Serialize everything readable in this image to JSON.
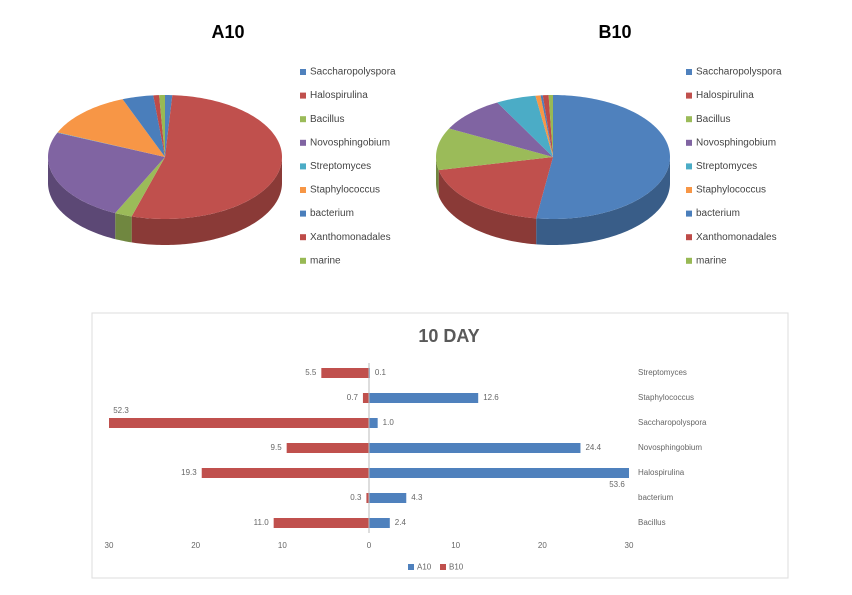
{
  "chart_data": [
    {
      "type": "pie",
      "title": "A10",
      "categories": [
        "Saccharopolyspora",
        "Halospirulina",
        "Bacillus",
        "Novosphingobium",
        "Streptomyces",
        "Staphylococcus",
        "bacterium",
        "Xanthomonadales",
        "marine"
      ],
      "values": [
        1.0,
        53.6,
        2.4,
        24.4,
        0.1,
        12.6,
        4.3,
        0.8,
        0.8
      ],
      "colors": [
        "#4f81bd",
        "#c0504d",
        "#9bbb59",
        "#8064a2",
        "#4bacc6",
        "#f79646",
        "#4a7ebb",
        "#be4b48",
        "#98b954"
      ],
      "legend": "right"
    },
    {
      "type": "pie",
      "title": "B10",
      "categories": [
        "Saccharopolyspora",
        "Halospirulina",
        "Bacillus",
        "Novosphingobium",
        "Streptomyces",
        "Staphylococcus",
        "bacterium",
        "Xanthomonadales",
        "marine"
      ],
      "values": [
        52.3,
        19.3,
        11.0,
        9.5,
        5.5,
        0.7,
        0.3,
        0.8,
        0.6
      ],
      "colors": [
        "#4f81bd",
        "#c0504d",
        "#9bbb59",
        "#8064a2",
        "#4bacc6",
        "#f79646",
        "#4a7ebb",
        "#be4b48",
        "#98b954"
      ],
      "legend": "right"
    },
    {
      "type": "bar",
      "title": "10 DAY",
      "categories": [
        "Streptomyces",
        "Staphylococcus",
        "Saccharopolyspora",
        "Novosphingobium",
        "Halospirulina",
        "bacterium",
        "Bacillus"
      ],
      "series": [
        {
          "name": "A10",
          "color": "#4f81bd",
          "side": "right",
          "values": [
            0.1,
            12.6,
            1.0,
            24.4,
            53.6,
            4.3,
            2.4
          ],
          "value_labels": [
            "0.1",
            "12.6",
            "1.0",
            "24.4",
            "53.6",
            "4.3",
            "2.4"
          ]
        },
        {
          "name": "B10",
          "color": "#c0504d",
          "side": "left",
          "values": [
            5.5,
            0.7,
            52.3,
            9.5,
            19.3,
            0.3,
            11.0
          ],
          "value_labels": [
            "5.5",
            "0.7",
            "52.3",
            "9.5",
            "19.3",
            "0.3",
            "11.0"
          ]
        }
      ],
      "xlim": [
        -30,
        30
      ],
      "xticks": [
        {
          "value": -30,
          "label": "30"
        },
        {
          "value": -20,
          "label": "20"
        },
        {
          "value": -10,
          "label": "10"
        },
        0,
        10,
        20,
        30
      ],
      "legend": "bottom"
    }
  ]
}
